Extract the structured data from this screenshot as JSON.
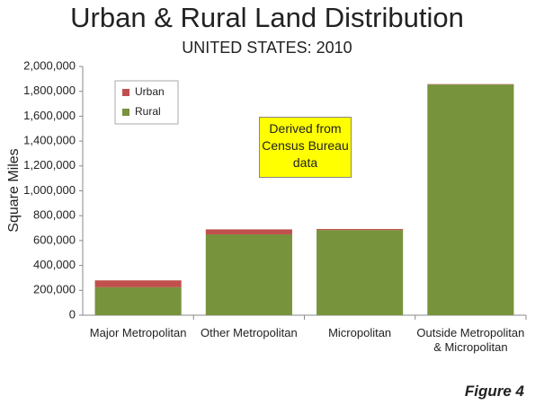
{
  "chart_data": {
    "type": "stacked_bar",
    "title": "Urban & Rural Land Distribution",
    "subtitle": "UNITED STATES: 2010",
    "y_label": "Square Miles",
    "annotation": "Derived from Census Bureau data",
    "footer": "Figure 4",
    "categories": [
      "Major Metropolitan",
      "Other Metropolitan",
      "Micropolitan",
      "Outside Metropolitan & Micropolitan"
    ],
    "series": [
      {
        "name": "Rural",
        "color": "#77933c",
        "values": [
          225000,
          650000,
          685000,
          1855000
        ]
      },
      {
        "name": "Urban",
        "color": "#c0504d",
        "values": [
          55000,
          40000,
          8000,
          3000
        ]
      }
    ],
    "ylim": [
      0,
      2000000
    ],
    "yticks": [
      0,
      {
        "value": 200000,
        "label": "200,000"
      },
      {
        "value": 400000,
        "label": "400,000"
      },
      {
        "value": 600000,
        "label": "600,000"
      },
      {
        "value": 800000,
        "label": "800,000"
      },
      {
        "value": 1000000,
        "label": "1,000,000"
      },
      {
        "value": 1200000,
        "label": "1,200,000"
      },
      {
        "value": 1400000,
        "label": "1,400,000"
      },
      {
        "value": 1600000,
        "label": "1,600,000"
      },
      {
        "value": 1800000,
        "label": "1,800,000"
      },
      {
        "value": 2000000,
        "label": "2,000,000"
      }
    ],
    "legend": "upper left"
  }
}
